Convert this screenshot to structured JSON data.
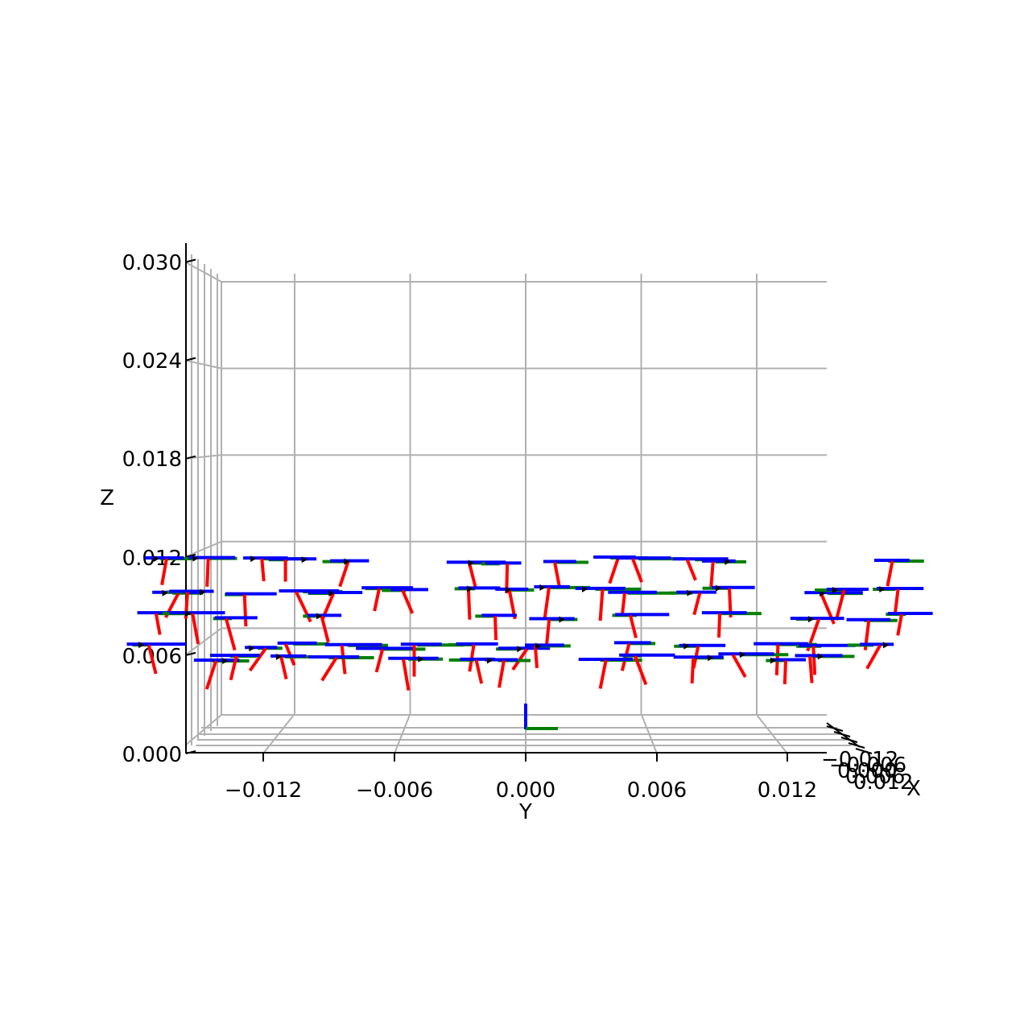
{
  "chart_data": {
    "type": "quiver3d",
    "title": "",
    "xlabel": "X",
    "ylabel": "Y",
    "zlabel": "Z",
    "y_ticks": [
      "−0.012",
      "−0.006",
      "0.000",
      "0.006",
      "0.012"
    ],
    "y_tick_values": [
      -0.012,
      -0.006,
      0.0,
      0.006,
      0.012
    ],
    "z_ticks": [
      "0.000",
      "0.006",
      "0.012",
      "0.018",
      "0.024",
      "0.030"
    ],
    "z_tick_values": [
      0.0,
      0.006,
      0.012,
      0.018,
      0.024,
      0.03
    ],
    "x_ticks": [
      "−0.012",
      "−0.006",
      "0.000",
      "0.006",
      "0.012"
    ],
    "x_tick_values": [
      -0.012,
      -0.006,
      0.0,
      0.006,
      0.012
    ],
    "ylim": [
      -0.0157,
      0.0157
    ],
    "zlim": [
      0.0,
      0.031
    ],
    "grid": true,
    "colors": {
      "x_axis_frame": "#ff0000",
      "y_axis_frame": "#008000",
      "z_axis_frame": "#0000ff",
      "velocity": "#000000",
      "grid": "#b0b0b0"
    },
    "origin_frame": {
      "y": 0.0,
      "z": 0.0015
    },
    "frame_layers_z": [
      0.0117,
      0.0099,
      0.0083,
      0.0065,
      0.0058
    ]
  }
}
